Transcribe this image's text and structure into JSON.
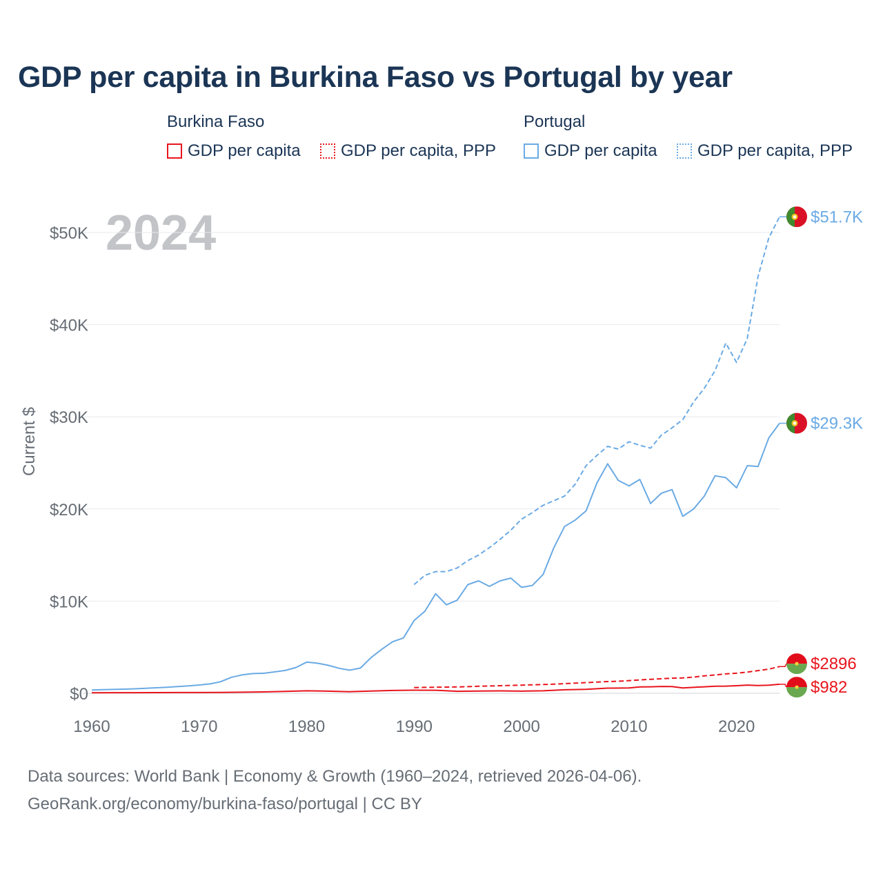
{
  "title": "GDP per capita in Burkina Faso vs Portugal by year",
  "legend": {
    "groups": [
      {
        "name": "Burkina Faso",
        "items": [
          "GDP per capita",
          "GDP per capita, PPP"
        ]
      },
      {
        "name": "Portugal",
        "items": [
          "GDP per capita",
          "GDP per capita, PPP"
        ]
      }
    ]
  },
  "colors": {
    "burkina": "#e8141c",
    "portugal": "#6aaae4",
    "axis_text": "#666d75",
    "title": "#1b3555"
  },
  "source": {
    "line1": "Data sources: World Bank | Economy & Growth (1960–2024, retrieved 2026-04-06).",
    "line2": "GeoRank.org/economy/burkina-faso/portugal | CC BY"
  },
  "chart_data": {
    "type": "line",
    "title": "GDP per capita in Burkina Faso vs Portugal by year",
    "year_label": "2024",
    "ylabel": "Current $",
    "xlabel": "",
    "xlim": [
      1960,
      2024
    ],
    "ylim": [
      0,
      52000
    ],
    "x_ticks": [
      1960,
      1970,
      1980,
      1990,
      2000,
      2010,
      2020
    ],
    "y_ticks": [
      0,
      10000,
      20000,
      30000,
      40000,
      50000
    ],
    "y_tick_labels": [
      "$0",
      "$10K",
      "$20K",
      "$30K",
      "$40K",
      "$50K"
    ],
    "grid": true,
    "series": [
      {
        "name": "Portugal GDP per capita, PPP",
        "country": "Portugal",
        "style": "dashed",
        "end_label": "$51.7K",
        "x": [
          1990,
          1991,
          1992,
          1993,
          1994,
          1995,
          1996,
          1997,
          1998,
          1999,
          2000,
          2001,
          2002,
          2003,
          2004,
          2005,
          2006,
          2007,
          2008,
          2009,
          2010,
          2011,
          2012,
          2013,
          2014,
          2015,
          2016,
          2017,
          2018,
          2019,
          2020,
          2021,
          2022,
          2023,
          2024
        ],
        "values": [
          11800,
          12800,
          13200,
          13200,
          13600,
          14400,
          15000,
          15800,
          16700,
          17700,
          18900,
          19600,
          20400,
          20900,
          21400,
          22700,
          24700,
          25800,
          26800,
          26500,
          27300,
          26900,
          26600,
          28000,
          28800,
          29700,
          31600,
          33100,
          35000,
          38000,
          35900,
          38500,
          45200,
          49400,
          51700
        ]
      },
      {
        "name": "Portugal GDP per capita",
        "country": "Portugal",
        "style": "solid",
        "end_label": "$29.3K",
        "x": [
          1960,
          1961,
          1962,
          1963,
          1964,
          1965,
          1966,
          1967,
          1968,
          1969,
          1970,
          1971,
          1972,
          1973,
          1974,
          1975,
          1976,
          1977,
          1978,
          1979,
          1980,
          1981,
          1982,
          1983,
          1984,
          1985,
          1986,
          1987,
          1988,
          1989,
          1990,
          1991,
          1992,
          1993,
          1994,
          1995,
          1996,
          1997,
          1998,
          1999,
          2000,
          2001,
          2002,
          2003,
          2004,
          2005,
          2006,
          2007,
          2008,
          2009,
          2010,
          2011,
          2012,
          2013,
          2014,
          2015,
          2016,
          2017,
          2018,
          2019,
          2020,
          2021,
          2022,
          2023,
          2024
        ],
        "values": [
          360,
          390,
          420,
          450,
          490,
          540,
          600,
          660,
          730,
          800,
          900,
          1020,
          1260,
          1740,
          2000,
          2140,
          2170,
          2320,
          2480,
          2800,
          3380,
          3260,
          3040,
          2720,
          2510,
          2740,
          3880,
          4780,
          5600,
          6000,
          7900,
          8900,
          10800,
          9600,
          10100,
          11800,
          12200,
          11600,
          12200,
          12500,
          11500,
          11700,
          12900,
          15800,
          18100,
          18800,
          19800,
          22800,
          24900,
          23100,
          22500,
          23200,
          20600,
          21700,
          22100,
          19200,
          20000,
          21400,
          23600,
          23400,
          22300,
          24700,
          24600,
          27700,
          29300
        ]
      },
      {
        "name": "Burkina Faso GDP per capita, PPP",
        "country": "Burkina Faso",
        "style": "dashed",
        "end_label": "$2896",
        "x": [
          1990,
          1991,
          1992,
          1993,
          1994,
          1995,
          1996,
          1997,
          1998,
          1999,
          2000,
          2001,
          2002,
          2003,
          2004,
          2005,
          2006,
          2007,
          2008,
          2009,
          2010,
          2011,
          2012,
          2013,
          2014,
          2015,
          2016,
          2017,
          2018,
          2019,
          2020,
          2021,
          2022,
          2023,
          2024
        ],
        "values": [
          620,
          640,
          660,
          670,
          690,
          720,
          760,
          790,
          820,
          850,
          880,
          920,
          950,
          990,
          1050,
          1100,
          1160,
          1210,
          1270,
          1300,
          1380,
          1450,
          1520,
          1580,
          1640,
          1670,
          1760,
          1890,
          1990,
          2100,
          2180,
          2300,
          2460,
          2620,
          2896
        ]
      },
      {
        "name": "Burkina Faso GDP per capita",
        "country": "Burkina Faso",
        "style": "solid",
        "end_label": "$982",
        "x": [
          1960,
          1962,
          1964,
          1966,
          1968,
          1970,
          1972,
          1974,
          1976,
          1978,
          1980,
          1982,
          1984,
          1986,
          1988,
          1990,
          1992,
          1994,
          1996,
          1998,
          2000,
          2002,
          2004,
          2006,
          2008,
          2010,
          2011,
          2012,
          2013,
          2014,
          2015,
          2016,
          2017,
          2018,
          2019,
          2020,
          2021,
          2022,
          2023,
          2024
        ],
        "values": [
          60,
          65,
          70,
          75,
          80,
          85,
          95,
          120,
          150,
          200,
          270,
          230,
          170,
          250,
          310,
          340,
          330,
          220,
          250,
          260,
          230,
          270,
          380,
          430,
          560,
          580,
          690,
          700,
          740,
          730,
          580,
          640,
          700,
          770,
          780,
          820,
          890,
          840,
          880,
          982
        ]
      }
    ]
  }
}
